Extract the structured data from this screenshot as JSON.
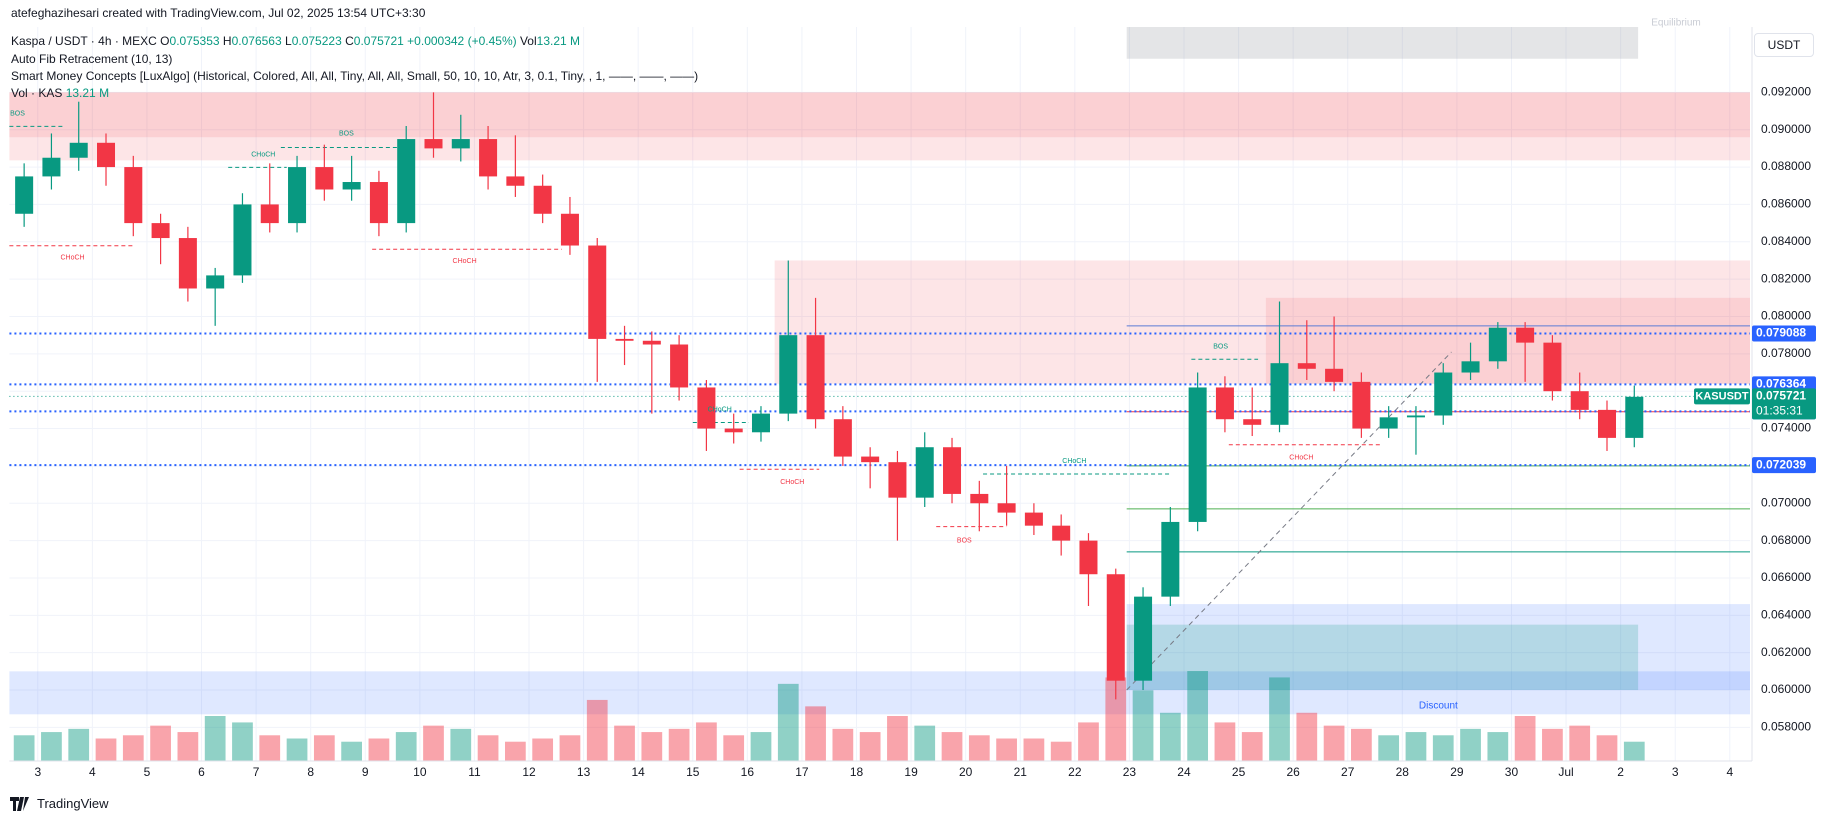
{
  "chart_data": {
    "type": "candlestick",
    "watermark": "atefeghazihesari created with TradingView.com, Jul 02, 2025 13:54 UTC+3:30",
    "legend": {
      "title": "Kaspa / USDT · 4h · MEXC",
      "prefixes": [
        "O",
        "H",
        "L",
        "C"
      ],
      "open": 0.075353,
      "high": 0.076563,
      "low": 0.075223,
      "close": 0.075721,
      "change": {
        "value": 0.000342,
        "label": "+0.000342"
      },
      "change_pct": {
        "value": 0.45,
        "label": "(+0.45%)"
      },
      "vol_prefix": "Vol",
      "vol": {
        "value": 13.21,
        "label": "13.21 M"
      },
      "indicators": [
        "Auto Fib Retracement (10, 13)",
        "Smart Money Concepts [LuxAlgo] (Historical, Colored, All, All, Tiny, All, All, Small, 50, 10, 10, Atr, 3, 0.1, Tiny, , 1, ——, ——, ——)"
      ],
      "vol_title": "Vol · KAS",
      "vol_value": {
        "value": 13.21,
        "label": "13.21 M"
      }
    },
    "currency": "USDT",
    "footer": "TradingView",
    "up_color": "#089981",
    "down_color": "#f23645",
    "x": [
      2.5,
      3,
      3.5,
      4,
      4.5,
      5,
      5.5,
      6,
      6.5,
      7,
      7.5,
      8,
      8.5,
      9,
      9.5,
      10,
      10.5,
      11,
      11.5,
      12,
      12.5,
      13,
      13.5,
      14,
      14.5,
      15,
      15.5,
      16,
      16.5,
      17,
      17.5,
      18,
      18.5,
      19,
      19.5,
      20,
      20.5,
      21,
      21.5,
      22,
      22.5,
      23,
      23.5,
      24,
      24.5,
      25,
      25.5,
      26,
      26.5,
      27,
      27.5,
      28,
      28.5,
      29,
      29.5,
      30,
      30.5,
      31,
      31.5,
      32
    ],
    "open": [
      0.0855,
      0.0875,
      0.0885,
      0.0893,
      0.088,
      0.085,
      0.0842,
      0.0815,
      0.0822,
      0.086,
      0.085,
      0.088,
      0.0868,
      0.0872,
      0.085,
      0.0895,
      0.089,
      0.0895,
      0.0875,
      0.087,
      0.0855,
      0.0838,
      0.0788,
      0.0787,
      0.0785,
      0.0762,
      0.074,
      0.0738,
      0.0748,
      0.079,
      0.0745,
      0.0725,
      0.0722,
      0.0703,
      0.073,
      0.0705,
      0.07,
      0.0695,
      0.0688,
      0.068,
      0.0662,
      0.0605,
      0.065,
      0.069,
      0.0762,
      0.0745,
      0.0742,
      0.0775,
      0.0772,
      0.0765,
      0.074,
      0.0746,
      0.0747,
      0.077,
      0.0776,
      0.0794,
      0.0786,
      0.076,
      0.075,
      0.0735
    ],
    "high": [
      0.0882,
      0.0898,
      0.0915,
      0.0898,
      0.0886,
      0.0855,
      0.0848,
      0.0826,
      0.0866,
      0.0882,
      0.0886,
      0.0892,
      0.0886,
      0.0878,
      0.0902,
      0.092,
      0.0908,
      0.0902,
      0.0897,
      0.0876,
      0.0864,
      0.0842,
      0.0795,
      0.0792,
      0.079,
      0.0766,
      0.0748,
      0.0752,
      0.083,
      0.081,
      0.0752,
      0.073,
      0.0728,
      0.0738,
      0.0735,
      0.0712,
      0.072,
      0.07,
      0.0694,
      0.0684,
      0.0665,
      0.0655,
      0.0698,
      0.077,
      0.0768,
      0.0762,
      0.0808,
      0.0798,
      0.08,
      0.077,
      0.0752,
      0.0752,
      0.0775,
      0.0786,
      0.0797,
      0.0797,
      0.079,
      0.077,
      0.0755,
      0.0763
    ],
    "low": [
      0.0848,
      0.0868,
      0.0878,
      0.087,
      0.0843,
      0.0828,
      0.0808,
      0.0795,
      0.0818,
      0.0845,
      0.0845,
      0.0862,
      0.0862,
      0.0843,
      0.0845,
      0.0885,
      0.0883,
      0.0868,
      0.0864,
      0.085,
      0.0833,
      0.0765,
      0.0774,
      0.0748,
      0.0755,
      0.0728,
      0.0732,
      0.0733,
      0.0744,
      0.074,
      0.072,
      0.0708,
      0.068,
      0.0698,
      0.07,
      0.0685,
      0.0688,
      0.0683,
      0.0672,
      0.0645,
      0.0595,
      0.06,
      0.0645,
      0.0685,
      0.0738,
      0.0736,
      0.0738,
      0.0766,
      0.076,
      0.0735,
      0.0735,
      0.0726,
      0.0742,
      0.0766,
      0.0772,
      0.0765,
      0.0755,
      0.0745,
      0.0728,
      0.073
    ],
    "close": [
      0.0875,
      0.0885,
      0.0893,
      0.088,
      0.085,
      0.0842,
      0.0815,
      0.0822,
      0.086,
      0.085,
      0.088,
      0.0868,
      0.0872,
      0.085,
      0.0895,
      0.089,
      0.0895,
      0.0875,
      0.087,
      0.0855,
      0.0838,
      0.0788,
      0.0787,
      0.0785,
      0.0762,
      0.074,
      0.0738,
      0.0748,
      0.079,
      0.0745,
      0.0725,
      0.0722,
      0.0703,
      0.073,
      0.0705,
      0.07,
      0.0695,
      0.0688,
      0.068,
      0.0662,
      0.0605,
      0.065,
      0.069,
      0.0762,
      0.0745,
      0.0742,
      0.0775,
      0.0772,
      0.0765,
      0.074,
      0.0746,
      0.0747,
      0.077,
      0.0776,
      0.0794,
      0.0786,
      0.076,
      0.075,
      0.0735,
      0.0757
    ],
    "volume": [
      40,
      45,
      50,
      35,
      40,
      55,
      45,
      70,
      60,
      40,
      35,
      40,
      30,
      35,
      45,
      55,
      50,
      40,
      30,
      35,
      40,
      95,
      55,
      45,
      50,
      60,
      40,
      45,
      120,
      85,
      50,
      45,
      70,
      55,
      45,
      40,
      35,
      35,
      30,
      60,
      130,
      110,
      75,
      140,
      60,
      45,
      130,
      75,
      55,
      50,
      40,
      45,
      40,
      50,
      45,
      70,
      50,
      55,
      40,
      30
    ],
    "xlim": [
      2.48,
      34.37
    ],
    "xticks": [
      3,
      4,
      5,
      6,
      7,
      8,
      9,
      10,
      11,
      12,
      13,
      14,
      15,
      16,
      17,
      18,
      19,
      20,
      21,
      22,
      23,
      24,
      25,
      26,
      27,
      28,
      29,
      30,
      {
        "value": 31,
        "label": "Jul"
      },
      {
        "value": 32,
        "label": "2"
      },
      {
        "value": 33,
        "label": "3"
      },
      {
        "value": 34,
        "label": "4"
      }
    ],
    "ylim": [
      0.0562,
      0.0955
    ],
    "yticks": [
      {
        "value": 0.058,
        "label": "0.058000"
      },
      {
        "value": 0.06,
        "label": "0.060000"
      },
      {
        "value": 0.062,
        "label": "0.062000"
      },
      {
        "value": 0.064,
        "label": "0.064000"
      },
      {
        "value": 0.066,
        "label": "0.066000"
      },
      {
        "value": 0.068,
        "label": "0.068000"
      },
      {
        "value": 0.07,
        "label": "0.070000"
      },
      {
        "value": 0.072,
        "label": "0.072000"
      },
      {
        "value": 0.074,
        "label": "0.074000"
      },
      {
        "value": 0.076,
        "label": "0.076000"
      },
      {
        "value": 0.078,
        "label": "0.078000"
      },
      {
        "value": 0.08,
        "label": "0.080000"
      },
      {
        "value": 0.082,
        "label": "0.082000"
      },
      {
        "value": 0.084,
        "label": "0.084000"
      },
      {
        "value": 0.086,
        "label": "0.086000"
      },
      {
        "value": 0.088,
        "label": "0.088000"
      },
      {
        "value": 0.09,
        "label": "0.090000"
      },
      {
        "value": 0.092,
        "label": "0.092000"
      }
    ],
    "grid": true,
    "price_lines": [
      0.079088,
      0.076364,
      0.074922,
      0.072039
    ],
    "price_line_color": "#2962ff",
    "last_price": 0.075721,
    "last_symbol": "KASUSDT",
    "countdown": "01:35:31",
    "zones": [
      {
        "x": [
          2.48,
          34.37
        ],
        "y": [
          0.08836,
          0.092
        ],
        "color": "rgba(242,54,69,0.13)"
      },
      {
        "x": [
          2.48,
          34.37
        ],
        "y": [
          0.0896,
          0.092
        ],
        "color": "rgba(242,54,69,0.12)"
      },
      {
        "x": [
          16.5,
          34.37
        ],
        "y": [
          0.0764,
          0.083
        ],
        "color": "rgba(242,54,69,0.13)"
      },
      {
        "x": [
          25.5,
          34.37
        ],
        "y": [
          0.0764,
          0.081
        ],
        "color": "rgba(242,54,69,0.12)"
      },
      {
        "x": [
          2.48,
          34.37
        ],
        "y": [
          0.0587,
          0.061
        ],
        "color": "rgba(41,98,255,0.15)"
      },
      {
        "x": [
          22.95,
          34.37
        ],
        "y": [
          0.06,
          0.0646
        ],
        "color": "rgba(41,98,255,0.15)"
      },
      {
        "x": [
          22.95,
          32.32
        ],
        "y": [
          0.06,
          0.0635
        ],
        "color": "rgba(8,153,129,0.2)"
      },
      {
        "x": [
          22.95,
          32.32
        ],
        "y": [
          0.0938,
          0.0955
        ],
        "color": "rgba(120,123,134,0.2)"
      }
    ],
    "zone_labels": [
      "Discount",
      "Equilibrium"
    ],
    "fib": {
      "x0": 22.95,
      "levels": [
        0.0795,
        0.0749,
        0.072,
        0.0697,
        0.0674
      ],
      "colors": [
        "#5b7bd5",
        "#f23645",
        "#4caf50",
        "#4caf50",
        "#089981"
      ],
      "trend": {
        "x": [
          22.95,
          28.9
        ],
        "y": [
          0.06,
          0.0781
        ]
      }
    },
    "annotations": [
      {
        "text": "BOS",
        "color": "#089981"
      },
      {
        "text": "BOS",
        "color": "#089981"
      },
      {
        "text": "CHoCH",
        "color": "#089981"
      },
      {
        "text": "CHoCH",
        "color": "#f23645"
      },
      {
        "text": "CHoCH",
        "color": "#f23645"
      },
      {
        "text": "CHoCH",
        "color": "#089981"
      },
      {
        "text": "CHoCH",
        "color": "#f23645"
      },
      {
        "text": "BOS",
        "color": "#f23645"
      },
      {
        "text": "CHoCH",
        "color": "#089981"
      },
      {
        "text": "BOS",
        "color": "#089981"
      },
      {
        "text": "CHoCH",
        "color": "#f23645"
      }
    ]
  }
}
